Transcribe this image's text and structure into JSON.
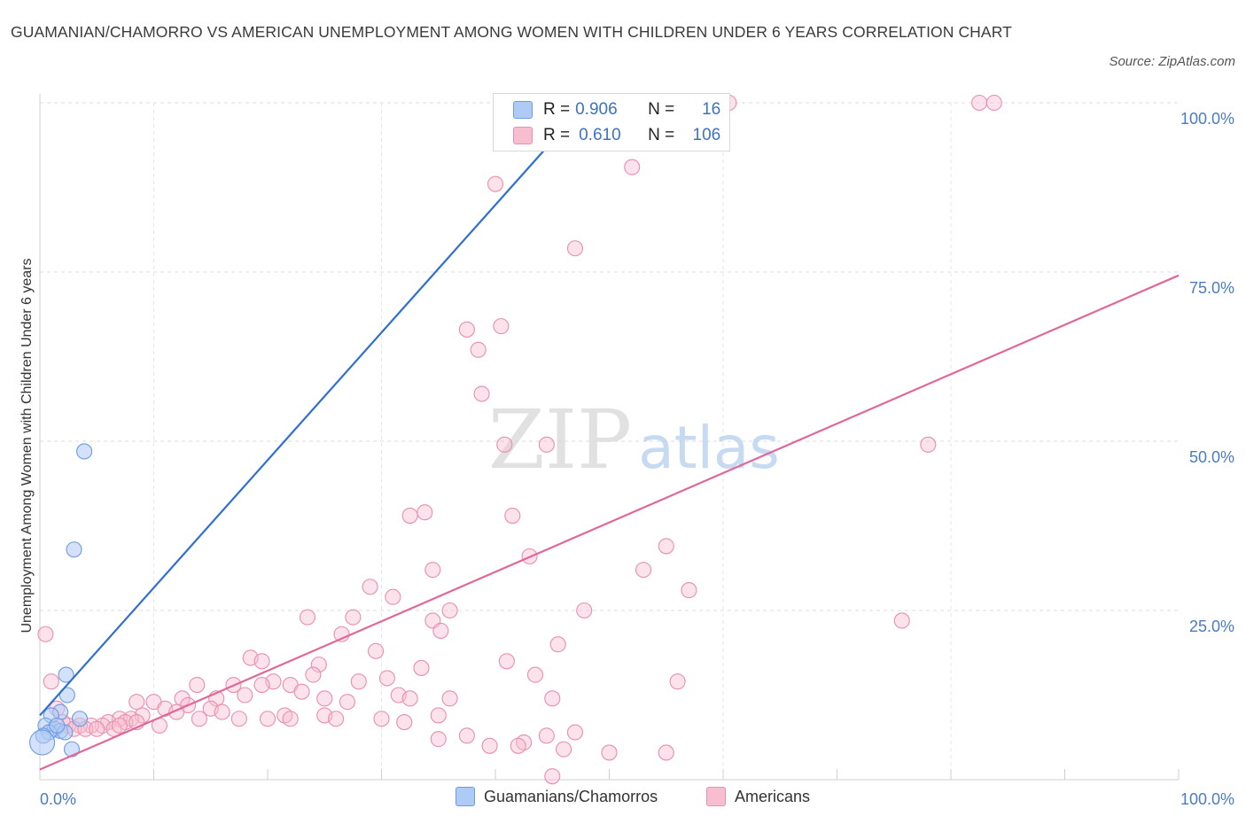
{
  "title": "GUAMANIAN/CHAMORRO VS AMERICAN UNEMPLOYMENT AMONG WOMEN WITH CHILDREN UNDER 6 YEARS CORRELATION CHART",
  "source": "Source: ZipAtlas.com",
  "watermark": {
    "zip": "ZIP",
    "atlas": "atlas"
  },
  "legend": {
    "rows": [
      {
        "r_label": "R =",
        "r_value": "0.906",
        "n_label": "N =",
        "n_value": "16",
        "color": "#aecbf5",
        "border": "#6d9ae0"
      },
      {
        "r_label": "R =",
        "r_value": "0.610",
        "n_label": "N =",
        "n_value": "106",
        "color": "#f8bed0",
        "border": "#e88fad"
      }
    ]
  },
  "bottom_legend": [
    {
      "label": "Guamanians/Chamorros",
      "color": "#aecbf5",
      "border": "#6d9ae0"
    },
    {
      "label": "Americans",
      "color": "#f8bed0",
      "border": "#e88fad"
    }
  ],
  "chart_data": {
    "type": "scatter",
    "title": "GUAMANIAN/CHAMORRO VS AMERICAN UNEMPLOYMENT AMONG WOMEN WITH CHILDREN UNDER 6 YEARS CORRELATION CHART",
    "xlabel": "",
    "ylabel": "Unemployment Among Women with Children Under 6 years",
    "xlim": [
      0,
      100
    ],
    "ylim": [
      0,
      100
    ],
    "x_tick_labels": [
      {
        "value": 0,
        "label": "0.0%"
      },
      {
        "value": 100,
        "label": "100.0%"
      }
    ],
    "y_tick_labels": [
      {
        "value": 25,
        "label": "25.0%"
      },
      {
        "value": 50,
        "label": "50.0%"
      },
      {
        "value": 75,
        "label": "75.0%"
      },
      {
        "value": 100,
        "label": "100.0%"
      }
    ],
    "series": [
      {
        "name": "Guamanians/Chamorros",
        "color": "#6d9ae0",
        "fill": "#aecbf5",
        "trend_color": "#2f6fd1",
        "trend": {
          "x": [
            0,
            48
          ],
          "y": [
            9.5,
            100
          ]
        },
        "points": [
          {
            "x": 3.9,
            "y": 48.5
          },
          {
            "x": 3.0,
            "y": 34.0
          },
          {
            "x": 2.3,
            "y": 15.5
          },
          {
            "x": 2.4,
            "y": 12.5
          },
          {
            "x": 3.5,
            "y": 9.0
          },
          {
            "x": 1.8,
            "y": 10.0
          },
          {
            "x": 1.0,
            "y": 9.5
          },
          {
            "x": 0.5,
            "y": 8.0
          },
          {
            "x": 1.3,
            "y": 7.5
          },
          {
            "x": 1.8,
            "y": 7.2
          },
          {
            "x": 2.2,
            "y": 7.0
          },
          {
            "x": 0.8,
            "y": 7.0
          },
          {
            "x": 2.8,
            "y": 4.5
          },
          {
            "x": 0.3,
            "y": 6.5
          },
          {
            "x": 1.5,
            "y": 8.0
          },
          {
            "x": 0.2,
            "y": 5.5
          }
        ]
      },
      {
        "name": "Americans",
        "color": "#e88fad",
        "fill": "#f8bed0",
        "trend_color": "#e0679a",
        "trend": {
          "x": [
            0,
            100
          ],
          "y": [
            1.5,
            74.5
          ]
        },
        "points": [
          {
            "x": 60.5,
            "y": 100.0
          },
          {
            "x": 82.5,
            "y": 100.0
          },
          {
            "x": 83.8,
            "y": 100.0
          },
          {
            "x": 40.0,
            "y": 88.0
          },
          {
            "x": 52.0,
            "y": 90.5
          },
          {
            "x": 47.0,
            "y": 78.5
          },
          {
            "x": 37.5,
            "y": 66.5
          },
          {
            "x": 40.5,
            "y": 67.0
          },
          {
            "x": 38.5,
            "y": 63.5
          },
          {
            "x": 38.8,
            "y": 57.0
          },
          {
            "x": 40.8,
            "y": 49.5
          },
          {
            "x": 44.5,
            "y": 49.5
          },
          {
            "x": 78.0,
            "y": 49.5
          },
          {
            "x": 32.5,
            "y": 39.0
          },
          {
            "x": 33.8,
            "y": 39.5
          },
          {
            "x": 41.5,
            "y": 39.0
          },
          {
            "x": 55.0,
            "y": 34.5
          },
          {
            "x": 43.0,
            "y": 33.0
          },
          {
            "x": 34.5,
            "y": 31.0
          },
          {
            "x": 53.0,
            "y": 31.0
          },
          {
            "x": 29.0,
            "y": 28.5
          },
          {
            "x": 31.0,
            "y": 27.0
          },
          {
            "x": 57.0,
            "y": 28.0
          },
          {
            "x": 36.0,
            "y": 25.0
          },
          {
            "x": 47.8,
            "y": 25.0
          },
          {
            "x": 23.5,
            "y": 24.0
          },
          {
            "x": 27.5,
            "y": 24.0
          },
          {
            "x": 34.5,
            "y": 23.5
          },
          {
            "x": 35.2,
            "y": 22.0
          },
          {
            "x": 0.5,
            "y": 21.5
          },
          {
            "x": 26.5,
            "y": 21.5
          },
          {
            "x": 75.7,
            "y": 23.5
          },
          {
            "x": 45.5,
            "y": 20.0
          },
          {
            "x": 29.5,
            "y": 19.0
          },
          {
            "x": 18.5,
            "y": 18.0
          },
          {
            "x": 19.5,
            "y": 17.5
          },
          {
            "x": 24.5,
            "y": 17.0
          },
          {
            "x": 33.5,
            "y": 16.5
          },
          {
            "x": 41.0,
            "y": 17.5
          },
          {
            "x": 43.5,
            "y": 15.5
          },
          {
            "x": 24.0,
            "y": 15.5
          },
          {
            "x": 30.5,
            "y": 15.0
          },
          {
            "x": 20.5,
            "y": 14.5
          },
          {
            "x": 22.0,
            "y": 14.0
          },
          {
            "x": 28.0,
            "y": 14.5
          },
          {
            "x": 56.0,
            "y": 14.5
          },
          {
            "x": 17.0,
            "y": 14.0
          },
          {
            "x": 19.5,
            "y": 14.0
          },
          {
            "x": 13.8,
            "y": 14.0
          },
          {
            "x": 1.0,
            "y": 14.5
          },
          {
            "x": 23.0,
            "y": 13.0
          },
          {
            "x": 18.0,
            "y": 12.5
          },
          {
            "x": 31.5,
            "y": 12.5
          },
          {
            "x": 25.0,
            "y": 12.0
          },
          {
            "x": 12.5,
            "y": 12.0
          },
          {
            "x": 15.5,
            "y": 12.0
          },
          {
            "x": 27.0,
            "y": 11.5
          },
          {
            "x": 32.5,
            "y": 12.0
          },
          {
            "x": 36.0,
            "y": 12.0
          },
          {
            "x": 45.0,
            "y": 12.0
          },
          {
            "x": 8.5,
            "y": 11.5
          },
          {
            "x": 10.0,
            "y": 11.5
          },
          {
            "x": 11.0,
            "y": 10.5
          },
          {
            "x": 13.0,
            "y": 11.0
          },
          {
            "x": 15.0,
            "y": 10.5
          },
          {
            "x": 16.0,
            "y": 10.0
          },
          {
            "x": 12.0,
            "y": 10.0
          },
          {
            "x": 9.0,
            "y": 9.5
          },
          {
            "x": 17.5,
            "y": 9.0
          },
          {
            "x": 21.5,
            "y": 9.5
          },
          {
            "x": 22.0,
            "y": 9.0
          },
          {
            "x": 14.0,
            "y": 9.0
          },
          {
            "x": 25.0,
            "y": 9.5
          },
          {
            "x": 30.0,
            "y": 9.0
          },
          {
            "x": 35.0,
            "y": 9.5
          },
          {
            "x": 7.0,
            "y": 9.0
          },
          {
            "x": 8.0,
            "y": 9.0
          },
          {
            "x": 6.0,
            "y": 8.5
          },
          {
            "x": 7.5,
            "y": 8.5
          },
          {
            "x": 5.5,
            "y": 8.0
          },
          {
            "x": 4.5,
            "y": 8.0
          },
          {
            "x": 3.5,
            "y": 8.0
          },
          {
            "x": 2.5,
            "y": 8.0
          },
          {
            "x": 1.5,
            "y": 10.5
          },
          {
            "x": 2.0,
            "y": 8.5
          },
          {
            "x": 3.0,
            "y": 7.5
          },
          {
            "x": 4.0,
            "y": 7.5
          },
          {
            "x": 5.0,
            "y": 7.5
          },
          {
            "x": 6.5,
            "y": 7.5
          },
          {
            "x": 7.0,
            "y": 8.0
          },
          {
            "x": 8.5,
            "y": 8.5
          },
          {
            "x": 10.5,
            "y": 8.0
          },
          {
            "x": 20.0,
            "y": 9.0
          },
          {
            "x": 26.0,
            "y": 9.0
          },
          {
            "x": 32.0,
            "y": 8.5
          },
          {
            "x": 37.5,
            "y": 6.5
          },
          {
            "x": 35.0,
            "y": 6.0
          },
          {
            "x": 42.5,
            "y": 5.5
          },
          {
            "x": 44.5,
            "y": 6.5
          },
          {
            "x": 47.0,
            "y": 7.0
          },
          {
            "x": 39.5,
            "y": 5.0
          },
          {
            "x": 42.0,
            "y": 5.0
          },
          {
            "x": 55.0,
            "y": 4.0
          },
          {
            "x": 50.0,
            "y": 4.0
          },
          {
            "x": 46.0,
            "y": 4.5
          },
          {
            "x": 45.0,
            "y": 0.5
          }
        ]
      }
    ],
    "legend_placement": "top-center",
    "grid": true
  }
}
